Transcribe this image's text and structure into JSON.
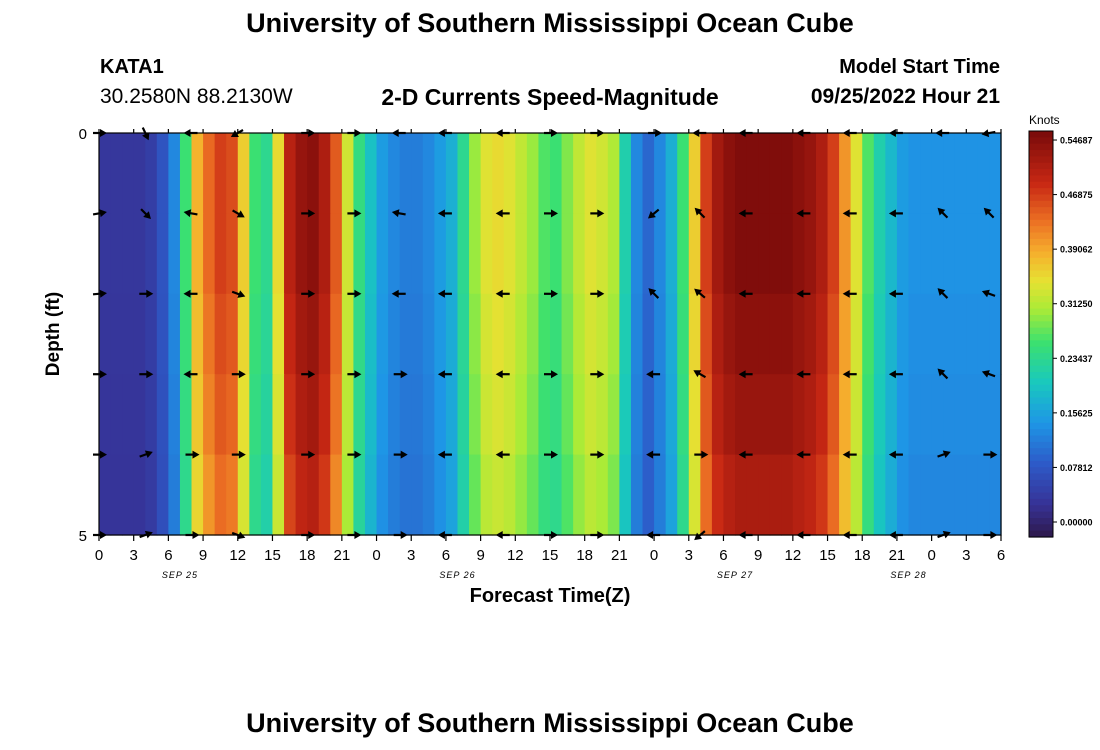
{
  "header": {
    "title": "University of Southern Mississippi Ocean Cube",
    "station": "KATA1",
    "coordinates": "30.2580N  88.2130W",
    "subtitle": "2-D Currents Speed-Magnitude",
    "start_label": "Model Start Time",
    "start_value": "09/25/2022 Hour 21",
    "footer_title": "University of Southern Mississippi Ocean Cube"
  },
  "colorbar": {
    "units": "Knots",
    "tick_labels": [
      "0.54687",
      "0.46875",
      "0.39062",
      "0.31250",
      "0.23437",
      "0.15625",
      "0.07812",
      "0.00000"
    ],
    "tick_values": [
      0.54687,
      0.46875,
      0.39062,
      0.3125,
      0.23437,
      0.15625,
      0.07812,
      0.0
    ]
  },
  "chart_data": {
    "type": "heatmap",
    "title": "2-D Currents Speed-Magnitude",
    "xlabel": "Forecast Time(Z)",
    "ylabel": "Depth (ft)",
    "ylim": [
      0,
      5
    ],
    "y_ticks": [
      "0",
      "5"
    ],
    "x_tick_labels": [
      "0",
      "3",
      "6",
      "9",
      "12",
      "15",
      "18",
      "21",
      "0",
      "3",
      "6",
      "9",
      "12",
      "15",
      "18",
      "21",
      "0",
      "3",
      "6",
      "9",
      "12",
      "15",
      "18",
      "21",
      "0",
      "3",
      "6"
    ],
    "date_labels": [
      "SEP 25",
      "SEP 26",
      "SEP 27",
      "SEP 28"
    ],
    "date_positions": [
      7,
      31,
      55,
      70
    ],
    "hours": 78,
    "value_range": [
      0.0,
      0.5469
    ],
    "depth_rows": 5,
    "profile_hour": [
      0,
      1,
      2,
      3,
      4,
      5,
      6,
      7,
      8,
      9,
      10,
      11,
      12,
      13,
      14,
      15,
      16,
      17,
      18,
      19,
      20,
      21,
      22,
      23,
      24,
      25,
      26,
      27,
      28,
      29,
      30,
      31,
      32,
      33,
      34,
      35,
      36,
      37,
      38,
      39,
      40,
      41,
      42,
      43,
      44,
      45,
      46,
      47,
      48,
      49,
      50,
      51,
      52,
      53,
      54,
      55,
      56,
      57,
      58,
      59,
      60,
      61,
      62,
      63,
      64,
      65,
      66,
      67,
      68,
      69,
      70,
      71,
      72,
      73,
      74,
      75,
      76,
      77
    ],
    "surface_speed": [
      0.05,
      0.05,
      0.05,
      0.05,
      0.06,
      0.09,
      0.14,
      0.26,
      0.38,
      0.43,
      0.46,
      0.45,
      0.36,
      0.26,
      0.24,
      0.35,
      0.49,
      0.52,
      0.53,
      0.5,
      0.44,
      0.33,
      0.25,
      0.2,
      0.16,
      0.14,
      0.13,
      0.13,
      0.14,
      0.16,
      0.18,
      0.24,
      0.3,
      0.34,
      0.35,
      0.34,
      0.32,
      0.3,
      0.27,
      0.26,
      0.29,
      0.32,
      0.34,
      0.33,
      0.31,
      0.22,
      0.14,
      0.11,
      0.14,
      0.18,
      0.26,
      0.36,
      0.46,
      0.51,
      0.53,
      0.54,
      0.54,
      0.54,
      0.54,
      0.54,
      0.53,
      0.52,
      0.5,
      0.46,
      0.4,
      0.34,
      0.27,
      0.22,
      0.19,
      0.16,
      0.15,
      0.15,
      0.15,
      0.15,
      0.15,
      0.15,
      0.15,
      0.15
    ],
    "depth_factor": [
      1.0,
      1.0,
      0.98,
      0.96,
      0.93
    ],
    "arrow_hours": [
      0,
      4,
      8,
      12,
      18,
      22,
      26,
      30,
      35,
      39,
      43,
      48,
      52,
      56,
      61,
      65,
      69,
      73,
      77
    ],
    "arrow_angles_deg": [
      [
        0,
        -65,
        180,
        -150,
        0,
        0,
        180,
        180,
        180,
        0,
        0,
        0,
        180,
        180,
        180,
        180,
        180,
        180,
        -170
      ],
      [
        10,
        -45,
        170,
        -30,
        0,
        0,
        170,
        180,
        180,
        0,
        0,
        -140,
        135,
        180,
        180,
        180,
        180,
        135,
        135
      ],
      [
        5,
        0,
        180,
        -20,
        0,
        0,
        180,
        180,
        180,
        0,
        0,
        135,
        140,
        180,
        180,
        180,
        180,
        135,
        160
      ],
      [
        0,
        0,
        180,
        0,
        0,
        0,
        0,
        180,
        180,
        0,
        0,
        180,
        150,
        180,
        180,
        180,
        180,
        135,
        160
      ],
      [
        0,
        20,
        0,
        0,
        0,
        0,
        0,
        180,
        180,
        0,
        0,
        180,
        0,
        180,
        180,
        180,
        180,
        20,
        0
      ],
      [
        0,
        20,
        0,
        -20,
        0,
        0,
        0,
        180,
        180,
        0,
        0,
        180,
        -140,
        180,
        180,
        180,
        180,
        20,
        0
      ]
    ]
  }
}
